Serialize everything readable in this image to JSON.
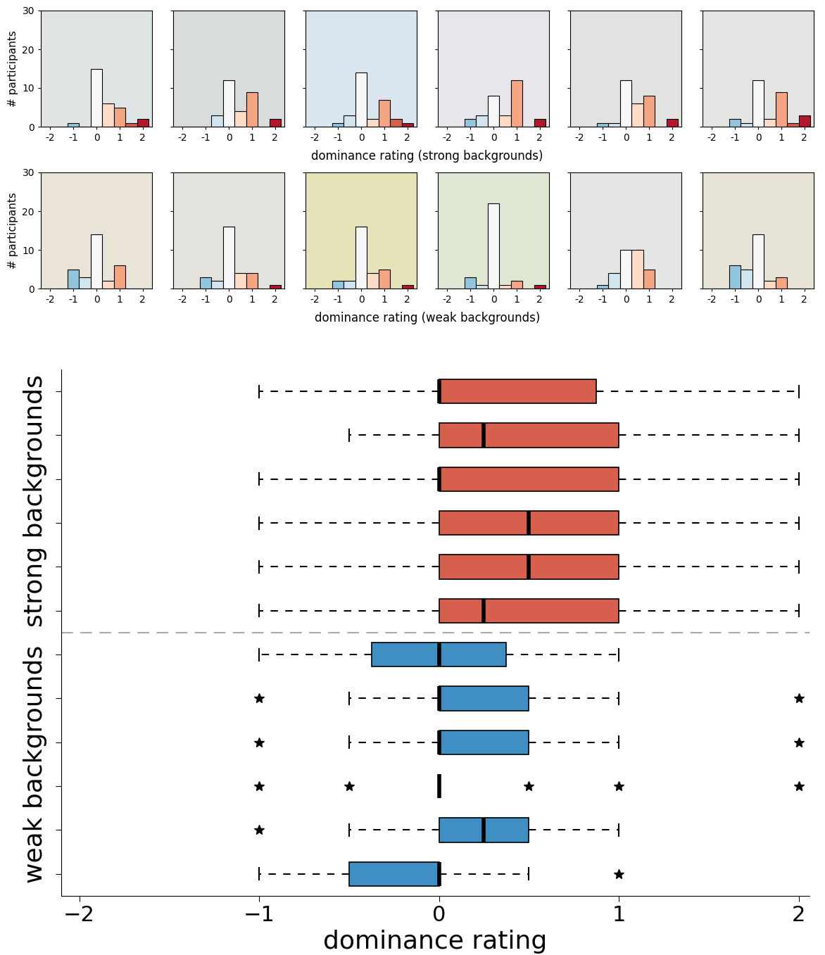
{
  "chart_data": [
    {
      "type": "bar",
      "x": [
        -2,
        -1.5,
        -1,
        -0.5,
        0,
        0.5,
        1,
        1.5,
        2
      ],
      "values": [
        0,
        0,
        1,
        0,
        15,
        6,
        5,
        1,
        2
      ],
      "colors": [
        "#2166ac",
        "#4393c3",
        "#92c5de",
        "#d1e5f0",
        "#f7f7f7",
        "#fddbc7",
        "#f4a582",
        "#d6604d",
        "#b2182b"
      ],
      "xlim": [
        -2.4,
        2.4
      ],
      "ylim": [
        0,
        30
      ],
      "xticks": [
        -2,
        -1,
        0,
        1,
        2
      ],
      "yticks": [
        0,
        10,
        20,
        30
      ],
      "ylabel": "# participants",
      "xlabel": "dominance rating (strong backgrounds)"
    },
    {
      "type": "bar",
      "x": [
        -2,
        -1.5,
        -1,
        -0.5,
        0,
        0.5,
        1,
        1.5,
        2
      ],
      "values": [
        0,
        0,
        0,
        3,
        12,
        4,
        9,
        0,
        2
      ],
      "colors": [
        "#2166ac",
        "#4393c3",
        "#92c5de",
        "#d1e5f0",
        "#f7f7f7",
        "#fddbc7",
        "#f4a582",
        "#d6604d",
        "#b2182b"
      ],
      "xlim": [
        -2.4,
        2.4
      ],
      "ylim": [
        0,
        30
      ],
      "xticks": [
        -2,
        -1,
        0,
        1,
        2
      ],
      "yticks": [
        0,
        10,
        20,
        30
      ],
      "tick_labels": "x"
    },
    {
      "type": "bar",
      "x": [
        -2,
        -1.5,
        -1,
        -0.5,
        0,
        0.5,
        1,
        1.5,
        2
      ],
      "values": [
        0,
        0,
        1,
        3,
        14,
        2,
        7,
        2,
        1
      ],
      "colors": [
        "#2166ac",
        "#4393c3",
        "#92c5de",
        "#d1e5f0",
        "#f7f7f7",
        "#fddbc7",
        "#f4a582",
        "#d6604d",
        "#b2182b"
      ],
      "xlim": [
        -2.4,
        2.4
      ],
      "ylim": [
        0,
        30
      ],
      "xticks": [
        -2,
        -1,
        0,
        1,
        2
      ],
      "yticks": [
        0,
        10,
        20,
        30
      ],
      "tick_labels": "x"
    },
    {
      "type": "bar",
      "x": [
        -2,
        -1.5,
        -1,
        -0.5,
        0,
        0.5,
        1,
        1.5,
        2
      ],
      "values": [
        0,
        0,
        2,
        3,
        8,
        3,
        12,
        0,
        2
      ],
      "colors": [
        "#2166ac",
        "#4393c3",
        "#92c5de",
        "#d1e5f0",
        "#f7f7f7",
        "#fddbc7",
        "#f4a582",
        "#d6604d",
        "#b2182b"
      ],
      "xlim": [
        -2.4,
        2.4
      ],
      "ylim": [
        0,
        30
      ],
      "xticks": [
        -2,
        -1,
        0,
        1,
        2
      ],
      "yticks": [
        0,
        10,
        20,
        30
      ],
      "tick_labels": "x"
    },
    {
      "type": "bar",
      "x": [
        -2,
        -1.5,
        -1,
        -0.5,
        0,
        0.5,
        1,
        1.5,
        2
      ],
      "values": [
        0,
        0,
        1,
        1,
        12,
        6,
        8,
        0,
        2
      ],
      "colors": [
        "#2166ac",
        "#4393c3",
        "#92c5de",
        "#d1e5f0",
        "#f7f7f7",
        "#fddbc7",
        "#f4a582",
        "#d6604d",
        "#b2182b"
      ],
      "xlim": [
        -2.4,
        2.4
      ],
      "ylim": [
        0,
        30
      ],
      "xticks": [
        -2,
        -1,
        0,
        1,
        2
      ],
      "yticks": [
        0,
        10,
        20,
        30
      ],
      "tick_labels": "x"
    },
    {
      "type": "bar",
      "x": [
        -2,
        -1.5,
        -1,
        -0.5,
        0,
        0.5,
        1,
        1.5,
        2
      ],
      "values": [
        0,
        0,
        2,
        1,
        12,
        2,
        9,
        1,
        3
      ],
      "colors": [
        "#2166ac",
        "#4393c3",
        "#92c5de",
        "#d1e5f0",
        "#f7f7f7",
        "#fddbc7",
        "#f4a582",
        "#d6604d",
        "#b2182b"
      ],
      "xlim": [
        -2.4,
        2.4
      ],
      "ylim": [
        0,
        30
      ],
      "xticks": [
        -2,
        -1,
        0,
        1,
        2
      ],
      "yticks": [
        0,
        10,
        20,
        30
      ],
      "tick_labels": "x"
    },
    {
      "type": "bar",
      "x": [
        -2,
        -1.5,
        -1,
        -0.5,
        0,
        0.5,
        1,
        1.5,
        2
      ],
      "values": [
        0,
        0,
        5,
        3,
        14,
        2,
        6,
        0,
        0
      ],
      "colors": [
        "#2166ac",
        "#4393c3",
        "#92c5de",
        "#d1e5f0",
        "#f7f7f7",
        "#fddbc7",
        "#f4a582",
        "#d6604d",
        "#b2182b"
      ],
      "xlim": [
        -2.4,
        2.4
      ],
      "ylim": [
        0,
        30
      ],
      "xticks": [
        -2,
        -1,
        0,
        1,
        2
      ],
      "yticks": [
        0,
        10,
        20,
        30
      ],
      "ylabel": "# participants",
      "xlabel": "dominance rating (weak backgrounds)"
    },
    {
      "type": "bar",
      "x": [
        -2,
        -1.5,
        -1,
        -0.5,
        0,
        0.5,
        1,
        1.5,
        2
      ],
      "values": [
        0,
        0,
        3,
        2,
        16,
        4,
        4,
        0,
        1
      ],
      "colors": [
        "#2166ac",
        "#4393c3",
        "#92c5de",
        "#d1e5f0",
        "#f7f7f7",
        "#fddbc7",
        "#f4a582",
        "#d6604d",
        "#b2182b"
      ],
      "xlim": [
        -2.4,
        2.4
      ],
      "ylim": [
        0,
        30
      ],
      "xticks": [
        -2,
        -1,
        0,
        1,
        2
      ],
      "yticks": [
        0,
        10,
        20,
        30
      ],
      "tick_labels": "x"
    },
    {
      "type": "bar",
      "x": [
        -2,
        -1.5,
        -1,
        -0.5,
        0,
        0.5,
        1,
        1.5,
        2
      ],
      "values": [
        0,
        0,
        2,
        2,
        16,
        4,
        5,
        0,
        1
      ],
      "colors": [
        "#2166ac",
        "#4393c3",
        "#92c5de",
        "#d1e5f0",
        "#f7f7f7",
        "#fddbc7",
        "#f4a582",
        "#d6604d",
        "#b2182b"
      ],
      "xlim": [
        -2.4,
        2.4
      ],
      "ylim": [
        0,
        30
      ],
      "xticks": [
        -2,
        -1,
        0,
        1,
        2
      ],
      "yticks": [
        0,
        10,
        20,
        30
      ],
      "tick_labels": "x"
    },
    {
      "type": "bar",
      "x": [
        -2,
        -1.5,
        -1,
        -0.5,
        0,
        0.5,
        1,
        1.5,
        2
      ],
      "values": [
        0,
        0,
        3,
        1,
        22,
        1,
        2,
        0,
        1
      ],
      "colors": [
        "#2166ac",
        "#4393c3",
        "#92c5de",
        "#d1e5f0",
        "#f7f7f7",
        "#fddbc7",
        "#f4a582",
        "#d6604d",
        "#b2182b"
      ],
      "xlim": [
        -2.4,
        2.4
      ],
      "ylim": [
        0,
        30
      ],
      "xticks": [
        -2,
        -1,
        0,
        1,
        2
      ],
      "yticks": [
        0,
        10,
        20,
        30
      ],
      "tick_labels": "x"
    },
    {
      "type": "bar",
      "x": [
        -2,
        -1.5,
        -1,
        -0.5,
        0,
        0.5,
        1,
        1.5,
        2
      ],
      "values": [
        0,
        0,
        1,
        4,
        10,
        10,
        5,
        0,
        0
      ],
      "colors": [
        "#2166ac",
        "#4393c3",
        "#92c5de",
        "#d1e5f0",
        "#f7f7f7",
        "#fddbc7",
        "#f4a582",
        "#d6604d",
        "#b2182b"
      ],
      "xlim": [
        -2.4,
        2.4
      ],
      "ylim": [
        0,
        30
      ],
      "xticks": [
        -2,
        -1,
        0,
        1,
        2
      ],
      "yticks": [
        0,
        10,
        20,
        30
      ],
      "tick_labels": "x"
    },
    {
      "type": "bar",
      "x": [
        -2,
        -1.5,
        -1,
        -0.5,
        0,
        0.5,
        1,
        1.5,
        2
      ],
      "values": [
        0,
        0,
        6,
        5,
        14,
        2,
        3,
        0,
        0
      ],
      "colors": [
        "#2166ac",
        "#4393c3",
        "#92c5de",
        "#d1e5f0",
        "#f7f7f7",
        "#fddbc7",
        "#f4a582",
        "#d6604d",
        "#b2182b"
      ],
      "xlim": [
        -2.4,
        2.4
      ],
      "ylim": [
        0,
        30
      ],
      "xticks": [
        -2,
        -1,
        0,
        1,
        2
      ],
      "yticks": [
        0,
        10,
        20,
        30
      ],
      "tick_labels": "x"
    },
    {
      "type": "box",
      "orientation": "horizontal",
      "xlabel": "dominance rating",
      "tick_labels": "x",
      "xlim": [
        -2.1,
        2.06
      ],
      "xticks": [
        {
          "value": -2,
          "label": "−2"
        },
        {
          "value": -1,
          "label": "−1"
        },
        0,
        1,
        2
      ],
      "series": [
        {
          "name": "strong backgrounds",
          "color": "#d6604d",
          "boxes": [
            {
              "whislo": -1,
              "q1": 0,
              "med": 0,
              "q3": 0.875,
              "whishi": 2,
              "fliers": []
            },
            {
              "whislo": -0.5,
              "q1": 0,
              "med": 0.25,
              "q3": 1,
              "whishi": 2,
              "fliers": []
            },
            {
              "whislo": -1,
              "q1": 0,
              "med": 0,
              "q3": 1,
              "whishi": 2,
              "fliers": []
            },
            {
              "whislo": -1,
              "q1": 0,
              "med": 0.5,
              "q3": 1,
              "whishi": 2,
              "fliers": []
            },
            {
              "whislo": -1,
              "q1": 0,
              "med": 0.5,
              "q3": 1,
              "whishi": 2,
              "fliers": []
            },
            {
              "whislo": -1,
              "q1": 0,
              "med": 0.25,
              "q3": 1,
              "whishi": 2,
              "fliers": []
            }
          ]
        },
        {
          "name": "weak backgrounds",
          "color": "#3f8fc5",
          "boxes": [
            {
              "whislo": -1,
              "q1": -0.375,
              "med": 0,
              "q3": 0.375,
              "whishi": 1,
              "fliers": []
            },
            {
              "whislo": -0.5,
              "q1": 0,
              "med": 0,
              "q3": 0.5,
              "whishi": 1,
              "fliers": [
                -1,
                2
              ]
            },
            {
              "whislo": -0.5,
              "q1": 0,
              "med": 0,
              "q3": 0.5,
              "whishi": 1,
              "fliers": [
                -1,
                2
              ]
            },
            {
              "whislo": 0,
              "q1": 0,
              "med": 0,
              "q3": 0,
              "whishi": 0,
              "fliers": [
                -1,
                -0.5,
                0.5,
                1,
                2
              ]
            },
            {
              "whislo": -0.5,
              "q1": 0,
              "med": 0.25,
              "q3": 0.5,
              "whishi": 1,
              "fliers": [
                -1
              ]
            },
            {
              "whislo": -1,
              "q1": -0.5,
              "med": 0,
              "q3": 0,
              "whishi": 0.5,
              "fliers": [
                1
              ]
            }
          ]
        }
      ]
    }
  ]
}
